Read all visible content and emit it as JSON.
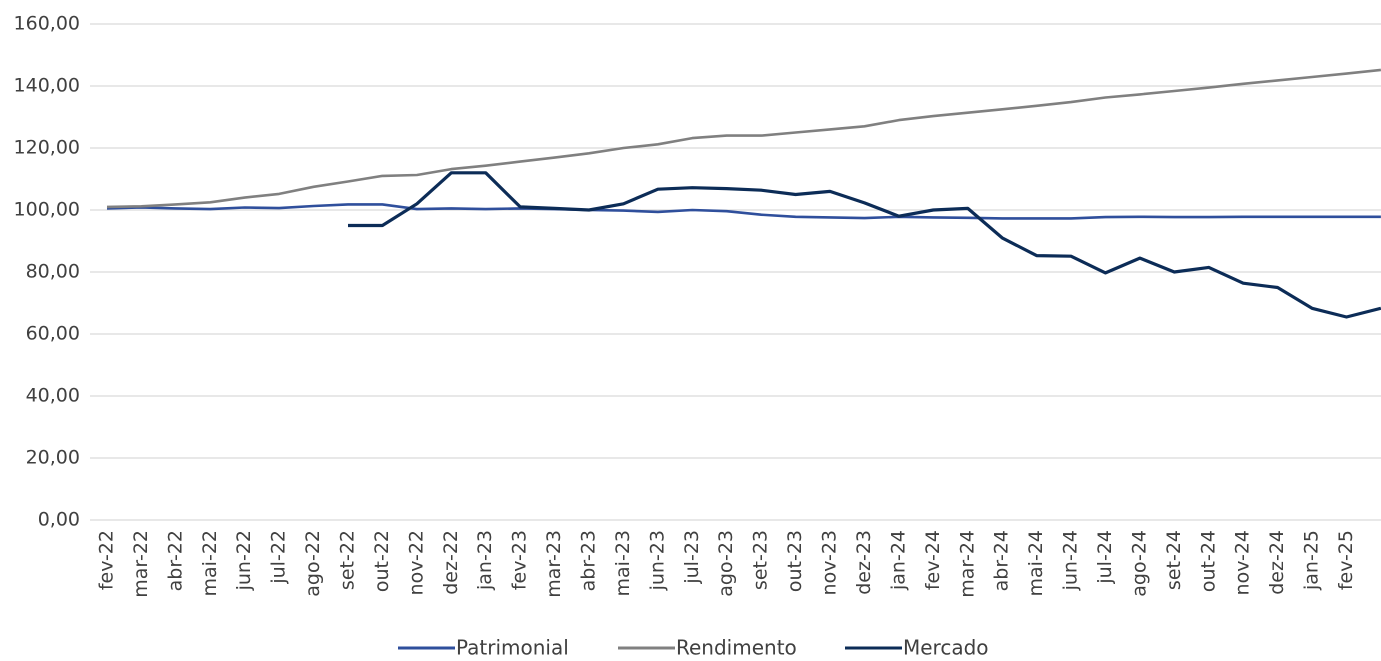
{
  "chart_data": {
    "type": "line",
    "categories": [
      "fev-22",
      "mar-22",
      "abr-22",
      "mai-22",
      "jun-22",
      "jul-22",
      "ago-22",
      "set-22",
      "out-22",
      "nov-22",
      "dez-22",
      "jan-23",
      "fev-23",
      "mar-23",
      "abr-23",
      "mai-23",
      "jun-23",
      "jul-23",
      "ago-23",
      "set-23",
      "out-23",
      "nov-23",
      "dez-23",
      "jan-24",
      "fev-24",
      "mar-24",
      "abr-24",
      "mai-24",
      "jun-24",
      "jul-24",
      "ago-24",
      "set-24",
      "out-24",
      "nov-24",
      "dez-24",
      "jan-25",
      "fev-25",
      null
    ],
    "series": [
      {
        "name": "Patrimonial",
        "color": "#2f4f9c",
        "values": [
          100.5,
          100.8,
          100.5,
          100.3,
          100.8,
          100.6,
          101.3,
          101.8,
          101.8,
          100.3,
          100.5,
          100.3,
          100.5,
          100.3,
          100.0,
          99.8,
          99.4,
          100.0,
          99.6,
          98.5,
          97.8,
          97.6,
          97.4,
          97.8,
          97.6,
          97.5,
          97.3,
          97.3,
          97.3,
          97.7,
          97.8,
          97.7,
          97.7,
          97.8,
          97.8,
          97.8,
          97.8,
          97.8
        ]
      },
      {
        "name": "Rendimento",
        "color": "#808080",
        "values": [
          101,
          101.2,
          101.8,
          102.5,
          104,
          105.2,
          107.5,
          109.2,
          111,
          111.3,
          113.2,
          114.3,
          115.6,
          116.9,
          118.3,
          120,
          121.2,
          123.2,
          124,
          124,
          125,
          126,
          127,
          129,
          130.3,
          131.4,
          132.5,
          133.6,
          134.8,
          136.3,
          137.3,
          138.4,
          139.5,
          140.7,
          141.8,
          142.9,
          144,
          145.2
        ]
      },
      {
        "name": "Mercado",
        "color": "#0c2c57",
        "values": [
          null,
          null,
          null,
          null,
          null,
          null,
          null,
          95,
          95,
          102,
          112,
          112,
          101,
          100.5,
          100,
          102,
          106.7,
          107.2,
          106.9,
          106.4,
          105,
          106,
          102.3,
          98,
          100,
          100.5,
          91,
          85.3,
          85.1,
          79.7,
          84.5,
          80,
          81.5,
          76.4,
          75,
          68.3,
          65.5,
          68.3
        ]
      }
    ],
    "ylim": [
      0,
      160
    ],
    "yticks": [
      {
        "value": 0,
        "label": "0,00"
      },
      {
        "value": 20,
        "label": "20,00"
      },
      {
        "value": 40,
        "label": "40,00"
      },
      {
        "value": 60,
        "label": "60,00"
      },
      {
        "value": 80,
        "label": "80,00"
      },
      {
        "value": 100,
        "label": "100,00"
      },
      {
        "value": 120,
        "label": "120,00"
      },
      {
        "value": 140,
        "label": "140,00"
      },
      {
        "value": 160,
        "label": "160,00"
      }
    ],
    "grid": true,
    "legend": "bottom"
  }
}
